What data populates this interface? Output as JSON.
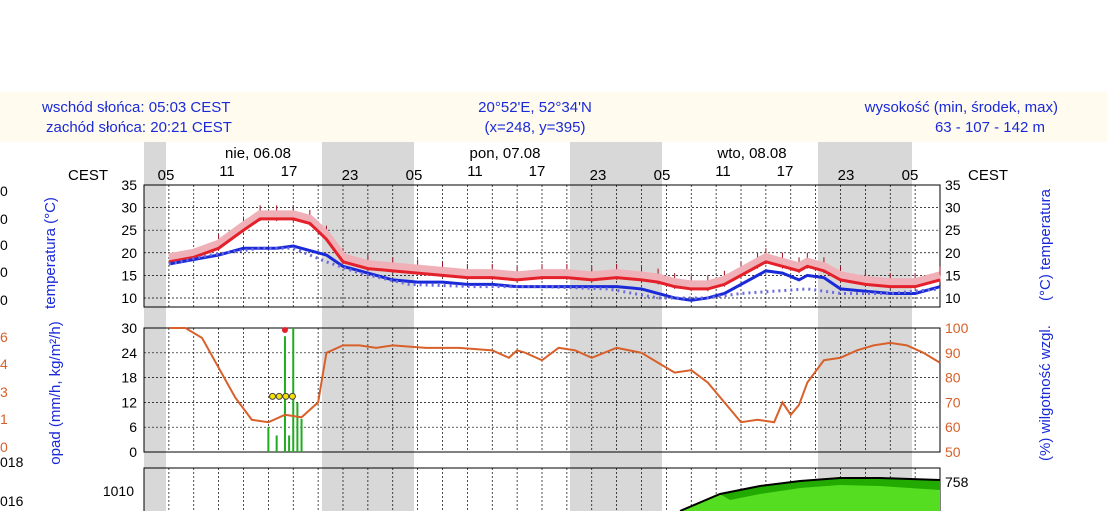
{
  "header": {
    "sunrise": "wschód słońca: 05:03 CEST",
    "sunset": "zachód słońca: 20:21 CEST",
    "coords": "20°52'E, 52°34'N",
    "grid": "(x=248,  y=395)",
    "elevation_label": "wysokość (min, środek, max)",
    "elevation_values": "63 - 107 - 142 m"
  },
  "tz_left": "CEST",
  "tz_right": "CEST",
  "dates": [
    "nie, 06.08",
    "pon, 07.08",
    "wto, 08.08"
  ],
  "time_ticks_top": [
    "05",
    "23",
    "05",
    "23",
    "05",
    "23",
    "05"
  ],
  "time_ticks_mid": [
    "11",
    "17",
    "11",
    "17",
    "11",
    "17"
  ],
  "left_edge_labels": [
    "0",
    "0",
    "0",
    "0",
    "0",
    "6",
    "4",
    "3",
    "1",
    "0",
    "018",
    "016"
  ],
  "colors": {
    "temperature": "#e4202a",
    "dewpoint": "#1a2ad8",
    "precip": "#22aa22",
    "humidity": "#d8602a",
    "pressure_fill": "#55dd22",
    "night_band": "#d8d8d8",
    "header_bg": "#fffbee"
  },
  "chart_data": [
    {
      "type": "line",
      "x_unit": "hours since 00:00 CEST, 06.08",
      "ylabel": "temperatura (°C)",
      "ylabel_right": "(°C) temperatura",
      "ylim": [
        8,
        35
      ],
      "yticks": [
        10,
        15,
        20,
        25,
        30,
        35
      ],
      "grid": true,
      "series": [
        {
          "x": [
            3,
            6,
            9,
            12,
            14,
            16,
            18,
            20,
            22,
            24,
            27,
            30,
            33,
            36,
            39,
            42,
            45,
            48,
            51,
            54,
            57,
            60,
            62,
            64,
            66,
            68,
            70,
            72,
            74,
            75,
            77,
            79,
            80,
            82,
            84,
            87,
            90,
            93,
            96
          ],
          "values": [
            18,
            19,
            21,
            25,
            27.5,
            27.5,
            27.5,
            26.5,
            23,
            18,
            16.5,
            16,
            15.5,
            15,
            14.5,
            14.5,
            14,
            14.5,
            14.5,
            14,
            14.5,
            14,
            13.5,
            12.5,
            12,
            12,
            13,
            15,
            17,
            18,
            17,
            16,
            17,
            16,
            14,
            13,
            12.5,
            12.5,
            14
          ]
        },
        {
          "x": [
            3,
            6,
            9,
            12,
            14,
            16,
            18,
            20,
            22,
            24,
            27,
            30,
            33,
            36,
            39,
            42,
            45,
            48,
            51,
            54,
            57,
            60,
            62,
            64,
            66,
            68,
            70,
            72,
            74,
            75,
            77,
            79,
            80,
            82,
            84,
            87,
            90,
            93,
            96
          ],
          "values": [
            17.5,
            18.5,
            19.5,
            21,
            21,
            21,
            21.5,
            20.5,
            19.5,
            17,
            15.5,
            14,
            13.5,
            13.5,
            13,
            13,
            12.5,
            12.5,
            12.5,
            12.5,
            12.5,
            12,
            11,
            10,
            9.5,
            10,
            11,
            13,
            15,
            16,
            15.5,
            14,
            15,
            14.5,
            12,
            11.5,
            11,
            11,
            12.5
          ]
        },
        {
          "x": [
            3,
            8,
            14,
            18,
            22,
            26,
            32,
            40,
            48,
            56,
            62,
            68,
            72,
            76,
            80,
            84,
            90,
            96
          ],
          "values": [
            17.5,
            19.5,
            21,
            21,
            18,
            15.5,
            13,
            12.5,
            12.5,
            12,
            10,
            10,
            11,
            11.5,
            12,
            11,
            11,
            12
          ]
        }
      ]
    },
    {
      "type": "bar",
      "x_unit": "hours since 00:00 CEST, 06.08",
      "ylabel": "opad (mm/h, kg/m²/h)",
      "ylabel_right": "(%) wilgotność wzgl.",
      "ylim": [
        0,
        30
      ],
      "yticks": [
        0,
        6,
        12,
        18,
        24,
        30
      ],
      "ylim_right": [
        50,
        100
      ],
      "yticks_right": [
        50,
        60,
        70,
        80,
        90,
        100
      ],
      "grid": true,
      "series": [
        {
          "x": [
            15,
            16,
            17,
            17.5,
            18,
            18.5,
            19
          ],
          "values": [
            6,
            4,
            28,
            4,
            30,
            12,
            8
          ]
        },
        {
          "x": [
            3,
            5,
            7,
            9,
            11,
            13,
            15,
            17,
            19,
            21,
            22,
            24,
            26,
            28,
            30,
            34,
            38,
            42,
            44,
            45,
            46,
            48,
            50,
            52,
            54,
            57,
            60,
            62,
            64,
            66,
            68,
            70,
            72,
            74,
            76,
            77,
            78,
            79,
            80,
            82,
            84,
            86,
            88,
            90,
            92,
            94,
            96
          ],
          "values": [
            100,
            100,
            96,
            84,
            72,
            63,
            62,
            65,
            64,
            70,
            90,
            93,
            93,
            92,
            93,
            92,
            92,
            91,
            88,
            91,
            90,
            87,
            92,
            91,
            88,
            92,
            90,
            86,
            82,
            83,
            78,
            70,
            62,
            63,
            62,
            70,
            65,
            69,
            78,
            87,
            88,
            91,
            93,
            94,
            93,
            90,
            86
          ]
        }
      ]
    },
    {
      "type": "area",
      "ylabel": "",
      "yticks": [
        1010
      ],
      "ytick_right": [
        "758"
      ],
      "series": []
    }
  ]
}
